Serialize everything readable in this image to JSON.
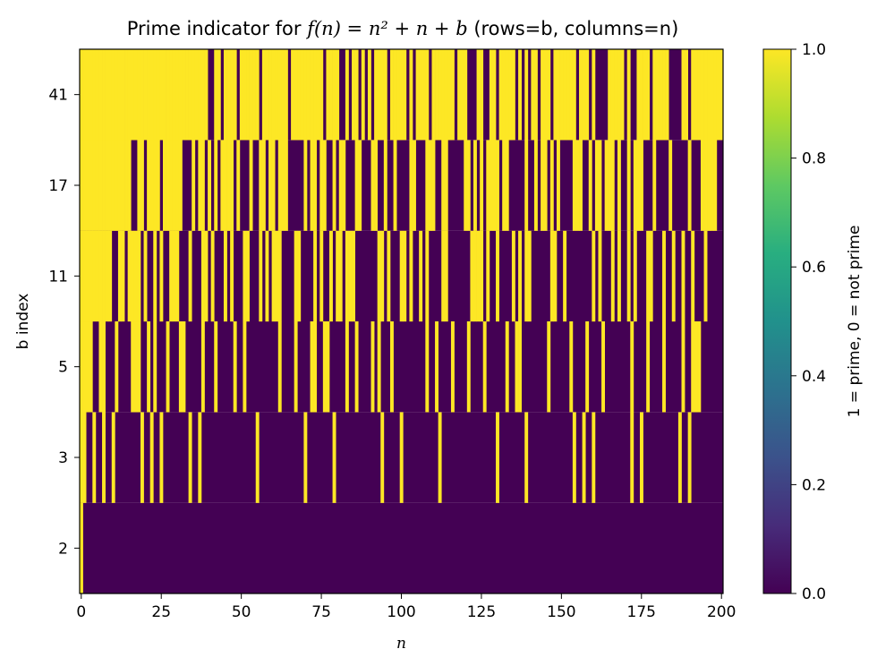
{
  "chart_data": {
    "type": "heatmap",
    "title": {
      "prefix": "Prime indicator for ",
      "formula": "f(n) = n² + n + b",
      "suffix": " (rows=b, columns=n)"
    },
    "xlabel": "n",
    "ylabel": "b index",
    "x_range": [
      0,
      200
    ],
    "x_ticks": [
      0,
      25,
      50,
      75,
      100,
      125,
      150,
      175,
      200
    ],
    "x_tick_labels": [
      "0",
      "25",
      "50",
      "75",
      "100",
      "125",
      "150",
      "175",
      "200"
    ],
    "rows_b": [
      2,
      3,
      5,
      11,
      17,
      41
    ],
    "colorbar": {
      "label": "1 = prime, 0 = not prime",
      "range": [
        0.0,
        1.0
      ],
      "ticks": [
        0.0,
        0.2,
        0.4,
        0.6,
        0.8,
        1.0
      ],
      "tick_labels": [
        "0.0",
        "0.2",
        "0.4",
        "0.6",
        "0.8",
        "1.0"
      ],
      "colormap": "viridis",
      "stops": [
        "#440154",
        "#472c7a",
        "#3b528b",
        "#2c728e",
        "#21918c",
        "#28ae80",
        "#5ec962",
        "#addc30",
        "#fde725"
      ]
    },
    "values_rule": "value = 1 if n*n + n + b is prime else 0, for n = 0..200"
  }
}
